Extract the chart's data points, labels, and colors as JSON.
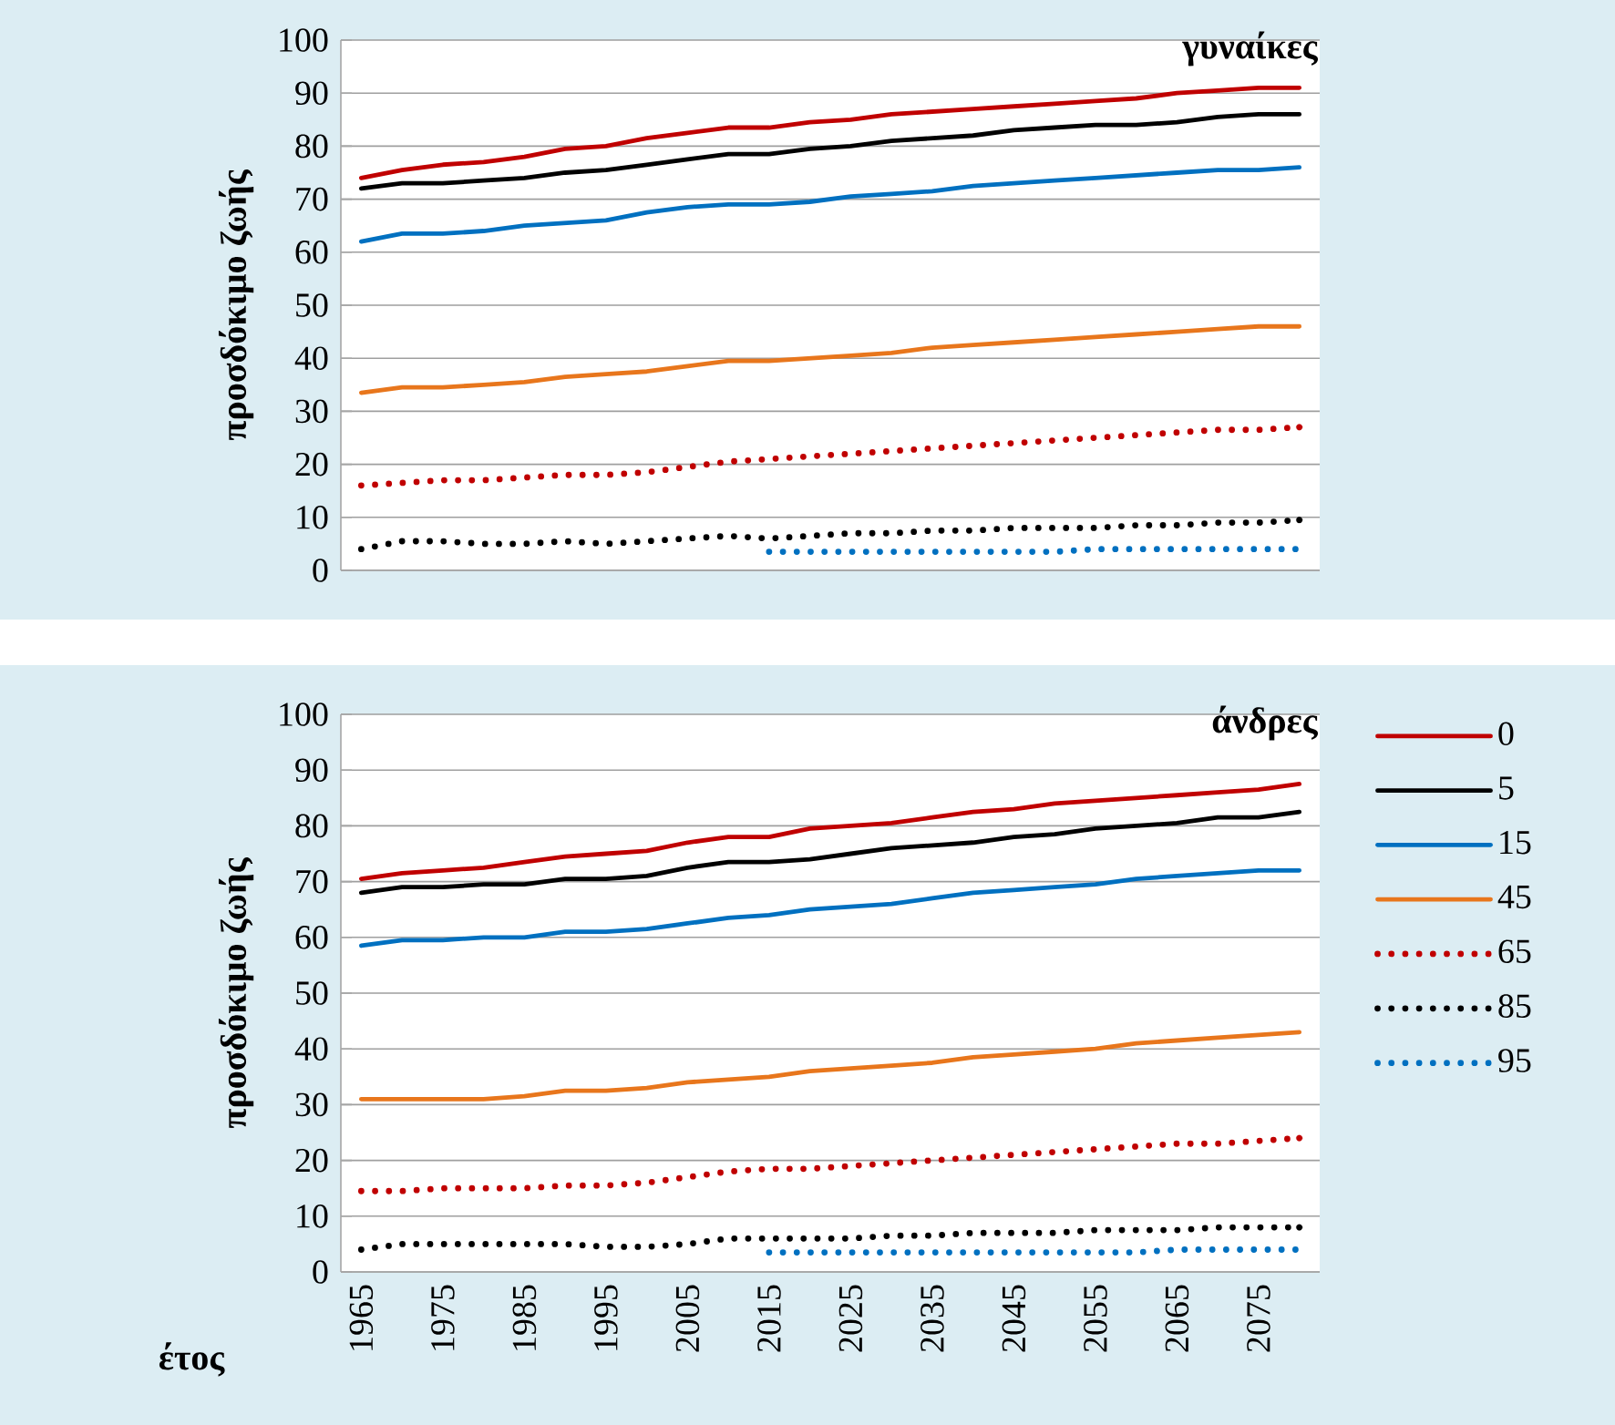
{
  "chart_data": [
    {
      "type": "line",
      "title": "γυναίκες",
      "ylabel": "προσδόκιμο ζωής",
      "categories": [
        "1965",
        null,
        "1975",
        null,
        "1985",
        null,
        "1995",
        null,
        "2005",
        null,
        "2015",
        null,
        "2025",
        null,
        "2035",
        null,
        "2045",
        null,
        "2055",
        null,
        "2065",
        null,
        "2075",
        null
      ],
      "ylim": [
        0,
        100
      ],
      "yticks": [
        0,
        10,
        20,
        30,
        40,
        50,
        60,
        70,
        80,
        90,
        100
      ],
      "grid": "y",
      "tick_labels": "y",
      "series": [
        {
          "color": "#c00000",
          "line_style": "solid",
          "values": [
            74,
            75.5,
            76.5,
            77,
            78,
            79.5,
            80,
            81.5,
            82.5,
            83.5,
            83.5,
            84.5,
            85,
            86,
            86.5,
            87,
            87.5,
            88,
            88.5,
            89,
            90,
            90.5,
            91,
            91
          ]
        },
        {
          "color": "#000000",
          "line_style": "solid",
          "values": [
            72,
            73,
            73,
            73.5,
            74,
            75,
            75.5,
            76.5,
            77.5,
            78.5,
            78.5,
            79.5,
            80,
            81,
            81.5,
            82,
            83,
            83.5,
            84,
            84,
            84.5,
            85.5,
            86,
            86
          ]
        },
        {
          "color": "#0070c0",
          "line_style": "solid",
          "values": [
            62,
            63.5,
            63.5,
            64,
            65,
            65.5,
            66,
            67.5,
            68.5,
            69,
            69,
            69.5,
            70.5,
            71,
            71.5,
            72.5,
            73,
            73.5,
            74,
            74.5,
            75,
            75.5,
            75.5,
            76
          ]
        },
        {
          "color": "#e8761c",
          "line_style": "solid",
          "values": [
            33.5,
            34.5,
            34.5,
            35,
            35.5,
            36.5,
            37,
            37.5,
            38.5,
            39.5,
            39.5,
            40,
            40.5,
            41,
            42,
            42.5,
            43,
            43.5,
            44,
            44.5,
            45,
            45.5,
            46,
            46
          ]
        },
        {
          "color": "#c00000",
          "line_style": "dotted",
          "values": [
            16,
            16.5,
            17,
            17,
            17.5,
            18,
            18,
            18.5,
            19.5,
            20.5,
            21,
            21.5,
            22,
            22.5,
            23,
            23.5,
            24,
            24.5,
            25,
            25.5,
            26,
            26.5,
            26.5,
            27
          ]
        },
        {
          "color": "#000000",
          "line_style": "dotted",
          "values": [
            4,
            5.5,
            5.5,
            5,
            5,
            5.5,
            5,
            5.5,
            6,
            6.5,
            6,
            6.5,
            7,
            7,
            7.5,
            7.5,
            8,
            8,
            8,
            8.5,
            8.5,
            9,
            9,
            9.5
          ]
        },
        {
          "color": "#0070c0",
          "line_style": "dotted",
          "values": [
            null,
            null,
            null,
            null,
            null,
            null,
            null,
            null,
            null,
            null,
            3.5,
            3.5,
            3.5,
            3.5,
            3.5,
            3.5,
            3.5,
            3.5,
            4,
            4,
            4,
            4,
            4,
            4
          ]
        }
      ]
    },
    {
      "type": "line",
      "title": "άνδρες",
      "ylabel": "προσδόκιμο ζωής",
      "xlabel": "έτος",
      "categories": [
        "1965",
        null,
        "1975",
        null,
        "1985",
        null,
        "1995",
        null,
        "2005",
        null,
        "2015",
        null,
        "2025",
        null,
        "2035",
        null,
        "2045",
        null,
        "2055",
        null,
        "2065",
        null,
        "2075",
        null
      ],
      "ylim": [
        0,
        100
      ],
      "yticks": [
        0,
        10,
        20,
        30,
        40,
        50,
        60,
        70,
        80,
        90,
        100
      ],
      "grid": "y",
      "legend": "right",
      "series": [
        {
          "name": "0",
          "color": "#c00000",
          "line_style": "solid",
          "values": [
            70.5,
            71.5,
            72,
            72.5,
            73.5,
            74.5,
            75,
            75.5,
            77,
            78,
            78,
            79.5,
            80,
            80.5,
            81.5,
            82.5,
            83,
            84,
            84.5,
            85,
            85.5,
            86,
            86.5,
            87.5
          ]
        },
        {
          "name": "5",
          "color": "#000000",
          "line_style": "solid",
          "values": [
            68,
            69,
            69,
            69.5,
            69.5,
            70.5,
            70.5,
            71,
            72.5,
            73.5,
            73.5,
            74,
            75,
            76,
            76.5,
            77,
            78,
            78.5,
            79.5,
            80,
            80.5,
            81.5,
            81.5,
            82.5
          ]
        },
        {
          "name": "15",
          "color": "#0070c0",
          "line_style": "solid",
          "values": [
            58.5,
            59.5,
            59.5,
            60,
            60,
            61,
            61,
            61.5,
            62.5,
            63.5,
            64,
            65,
            65.5,
            66,
            67,
            68,
            68.5,
            69,
            69.5,
            70.5,
            71,
            71.5,
            72,
            72
          ]
        },
        {
          "name": "45",
          "color": "#e8761c",
          "line_style": "solid",
          "values": [
            31,
            31,
            31,
            31,
            31.5,
            32.5,
            32.5,
            33,
            34,
            34.5,
            35,
            36,
            36.5,
            37,
            37.5,
            38.5,
            39,
            39.5,
            40,
            41,
            41.5,
            42,
            42.5,
            43
          ]
        },
        {
          "name": "65",
          "color": "#c00000",
          "line_style": "dotted",
          "values": [
            14.5,
            14.5,
            15,
            15,
            15,
            15.5,
            15.5,
            16,
            17,
            18,
            18.5,
            18.5,
            19,
            19.5,
            20,
            20.5,
            21,
            21.5,
            22,
            22.5,
            23,
            23,
            23.5,
            24
          ]
        },
        {
          "name": "85",
          "color": "#000000",
          "line_style": "dotted",
          "values": [
            4,
            5,
            5,
            5,
            5,
            5,
            4.5,
            4.5,
            5,
            6,
            6,
            6,
            6,
            6.5,
            6.5,
            7,
            7,
            7,
            7.5,
            7.5,
            7.5,
            8,
            8,
            8
          ]
        },
        {
          "name": "95",
          "color": "#0070c0",
          "line_style": "dotted",
          "values": [
            null,
            null,
            null,
            null,
            null,
            null,
            null,
            null,
            null,
            null,
            3.5,
            3.5,
            3.5,
            3.5,
            3.5,
            3.5,
            3.5,
            3.5,
            3.5,
            3.5,
            4,
            4,
            4,
            4
          ]
        }
      ]
    }
  ]
}
